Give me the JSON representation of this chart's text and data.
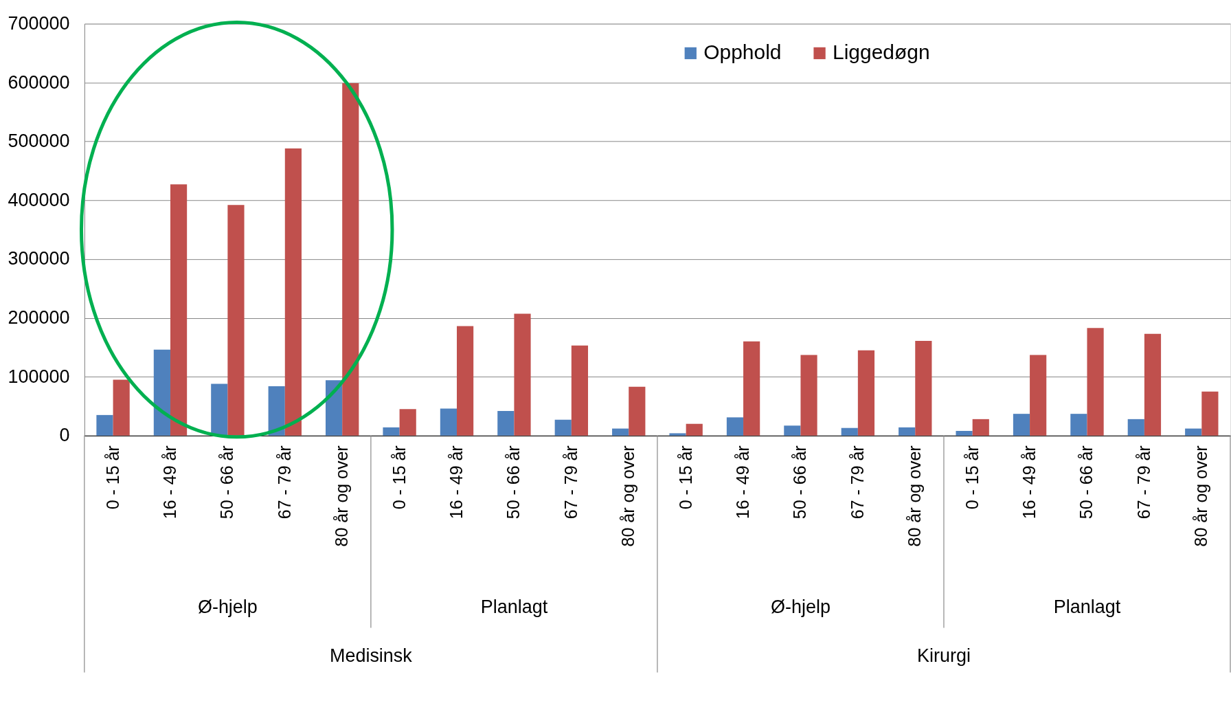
{
  "chart_data": {
    "type": "bar",
    "categories": [
      "0 - 15 år",
      "16 - 49 år",
      "50 - 66 år",
      "67 - 79 år",
      "80 år og over",
      "0 - 15 år",
      "16 - 49 år",
      "50 - 66 år",
      "67 - 79 år",
      "80 år og over",
      "0 - 15 år",
      "16 - 49 år",
      "50 - 66 år",
      "67 - 79 år",
      "80 år og over",
      "0 - 15 år",
      "16 - 49 år",
      "50 - 66 år",
      "67 - 79 år",
      "80 år og over"
    ],
    "series": [
      {
        "name": "Opphold",
        "color": "#4f81bd",
        "values": [
          35000,
          146000,
          88000,
          84000,
          94000,
          14000,
          46000,
          42000,
          27000,
          12000,
          4000,
          31000,
          17000,
          13000,
          14000,
          8000,
          37000,
          37000,
          28000,
          12000
        ]
      },
      {
        "name": "Liggedøgn",
        "color": "#c0504d",
        "values": [
          95000,
          427000,
          392000,
          488000,
          599000,
          45000,
          186000,
          207000,
          153000,
          83000,
          20000,
          160000,
          137000,
          145000,
          161000,
          28000,
          137000,
          183000,
          173000,
          75000
        ]
      }
    ],
    "ylim": [
      0,
      700000
    ],
    "yticks": [
      0,
      100000,
      200000,
      300000,
      400000,
      500000,
      600000,
      700000
    ],
    "grid": "y",
    "legend": "top",
    "annotations": [
      "Ø-hjelp",
      "Planlagt",
      "Ø-hjelp",
      "Planlagt",
      "Medisinsk",
      "Kirurgi"
    ]
  }
}
